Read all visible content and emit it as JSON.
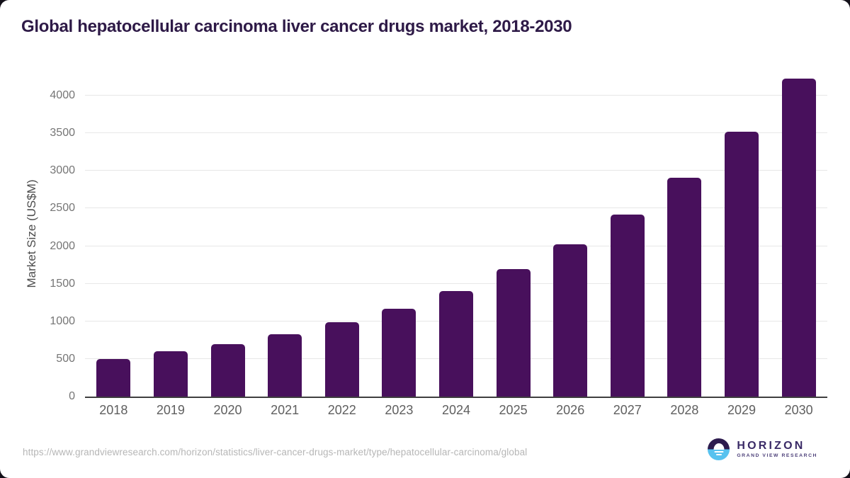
{
  "chart_data": {
    "type": "bar",
    "title": "Global hepatocellular carcinoma liver cancer drugs market, 2018-2030",
    "xlabel": "",
    "ylabel": "Market Size (US$M)",
    "categories": [
      "2018",
      "2019",
      "2020",
      "2021",
      "2022",
      "2023",
      "2024",
      "2025",
      "2026",
      "2027",
      "2028",
      "2029",
      "2030"
    ],
    "values": [
      500,
      600,
      700,
      830,
      990,
      1170,
      1400,
      1690,
      2020,
      2420,
      2910,
      3520,
      4230
    ],
    "ylim": [
      0,
      4330
    ],
    "yticks": [
      0,
      500,
      1000,
      1500,
      2000,
      2500,
      3000,
      3500,
      4000
    ],
    "grid": "horizontal",
    "legend": "none",
    "bar_color": "#48105c"
  },
  "colors": {
    "bar": "#48105c",
    "title": "#2e1a47",
    "gridline": "#e7e7e7",
    "axis_line": "#3f3f3f",
    "tick_label": "#757575",
    "x_tick_label": "#5f5f5f",
    "footer_text": "#b6b6b6",
    "logo_purple": "#3a2a66",
    "logo_circle_top": "#2d1b4e",
    "logo_circle_bottom": "#58c2ef"
  },
  "footer": {
    "source_url": "https://www.grandviewresearch.com/horizon/statistics/liver-cancer-drugs-market/type/hepatocellular-carcinoma/global"
  },
  "logo": {
    "brand": "HORIZON",
    "tagline": "GRAND VIEW RESEARCH"
  }
}
